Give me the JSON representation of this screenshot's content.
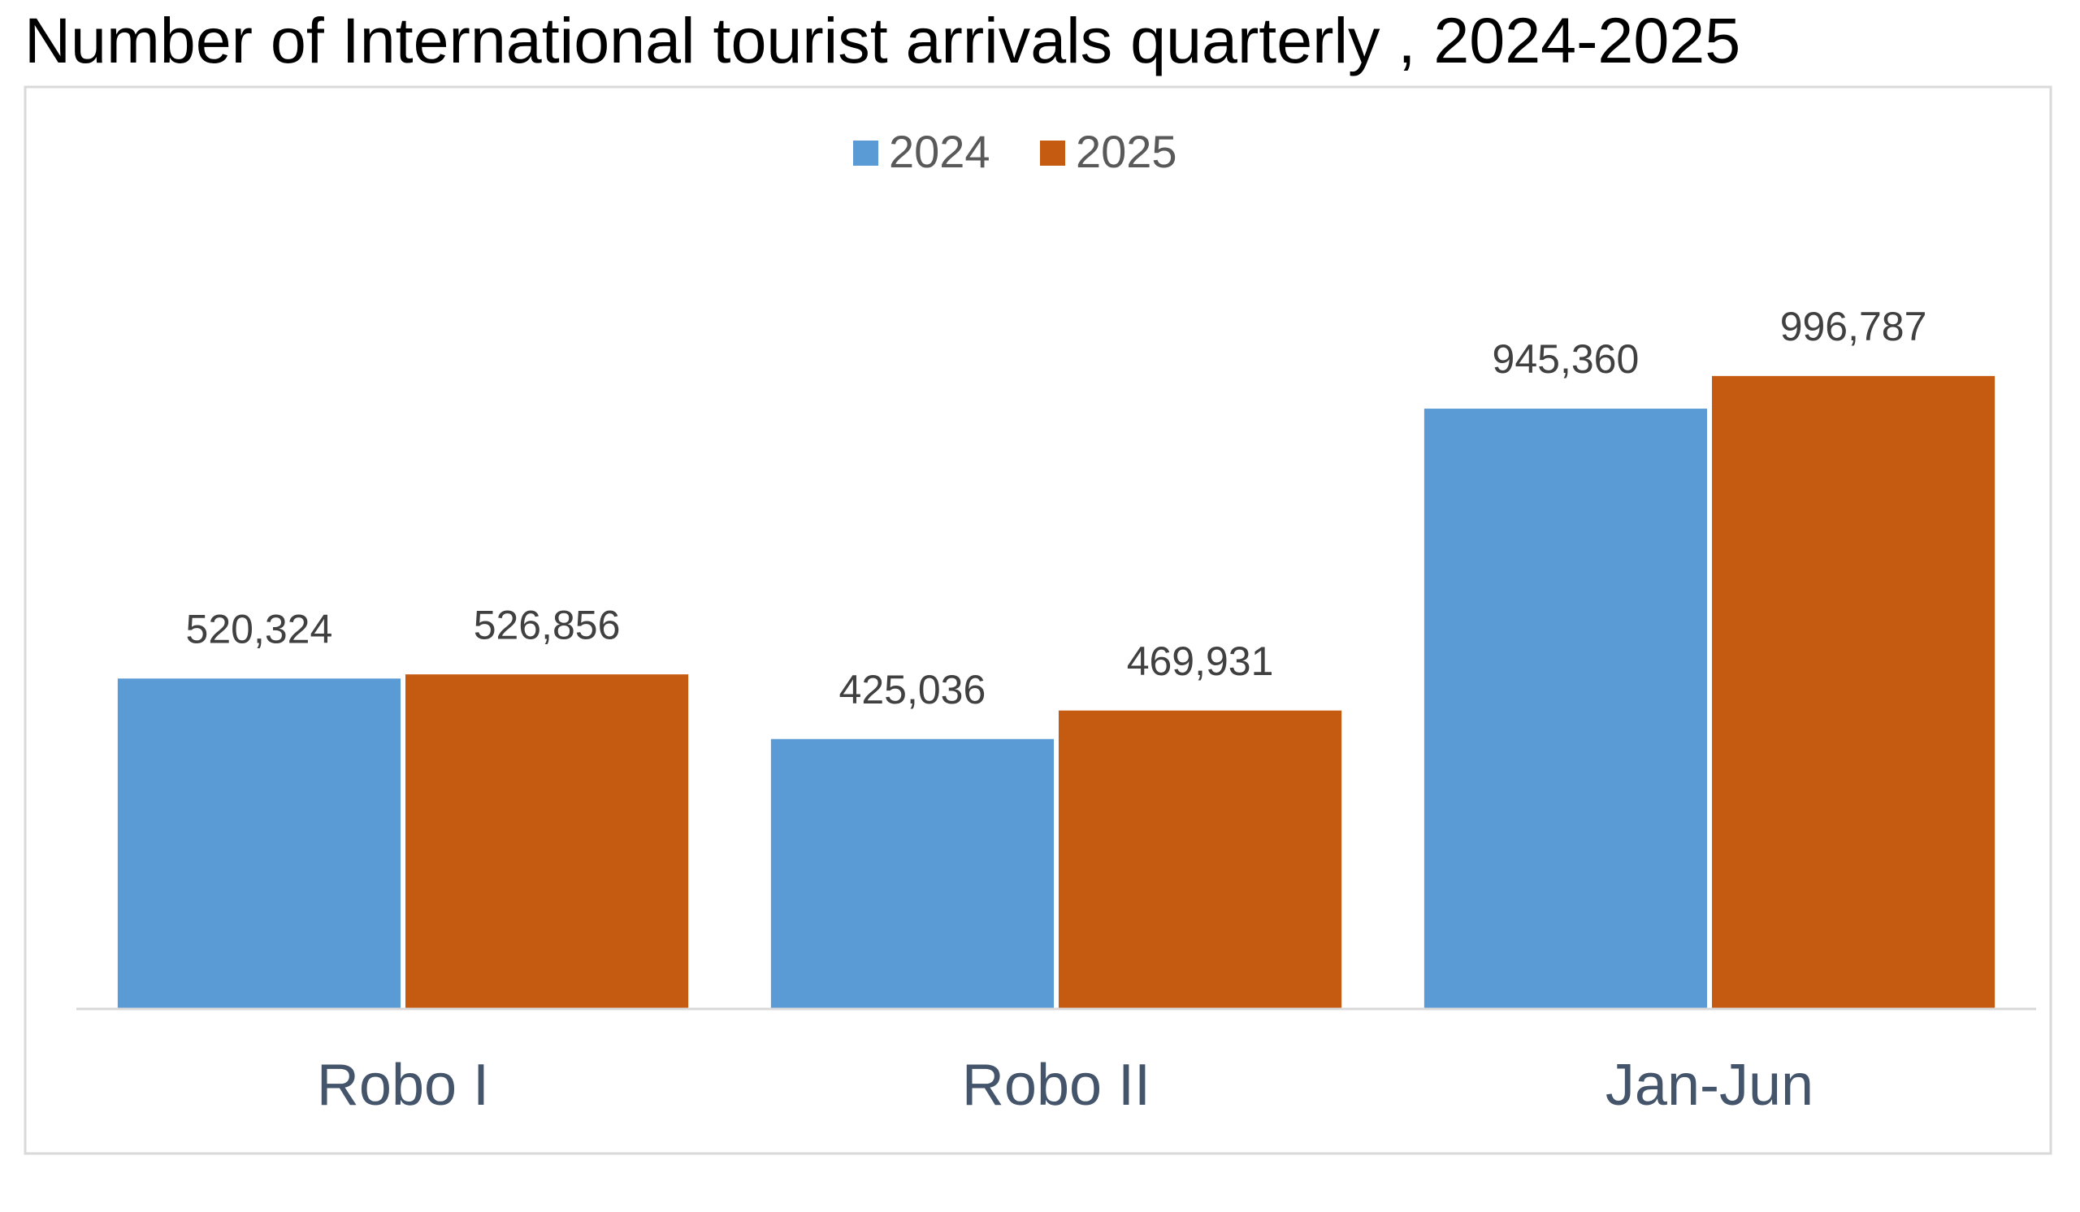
{
  "chart_data": {
    "type": "bar",
    "title": "Number of International  tourist arrivals quarterly , 2024-2025",
    "categories": [
      "Robo I",
      "Robo II",
      "Jan-Jun"
    ],
    "series": [
      {
        "name": "2024",
        "color": "#5b9bd5",
        "values": [
          520324,
          425036,
          945360
        ],
        "value_labels": [
          "520,324",
          "425,036",
          "945,360"
        ]
      },
      {
        "name": "2025",
        "color": "#c55a11",
        "values": [
          526856,
          469931,
          996787
        ],
        "value_labels": [
          "526,856",
          "469,931",
          "996,787"
        ]
      }
    ],
    "ylim": [
      0,
      1200000
    ],
    "legend": "top"
  }
}
